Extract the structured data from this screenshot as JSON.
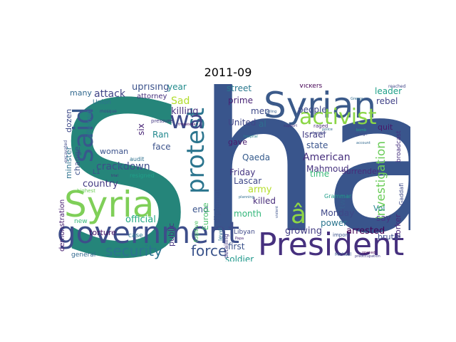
{
  "title": "2011-09",
  "words": [
    {
      "text": "S",
      "color": "#25857a"
    },
    {
      "text": "ha",
      "color": "#39558c"
    },
    {
      "text": "Syrian",
      "color": "#3b5a8a"
    },
    {
      "text": "government",
      "color": "#3d4e8a"
    },
    {
      "text": "President",
      "color": "#46307e"
    },
    {
      "text": "Syria",
      "color": "#7fcf58"
    },
    {
      "text": "activist",
      "color": "#8bd646"
    },
    {
      "text": "said",
      "color": "#38578c"
    },
    {
      "text": "protest",
      "color": "#2b758e"
    },
    {
      "text": "wa",
      "color": "#3e4a89"
    },
    {
      "text": "security",
      "color": "#2c738e"
    },
    {
      "text": "force",
      "color": "#3a538b"
    },
    {
      "text": "â",
      "color": "#8ed645"
    },
    {
      "text": "investigation",
      "color": "#6ccd5a"
    },
    {
      "text": "American",
      "color": "#472f7d"
    },
    {
      "text": "crackdown",
      "color": "#3e4c8a"
    },
    {
      "text": "country",
      "color": "#443a83"
    },
    {
      "text": "attack",
      "color": "#414487"
    },
    {
      "text": "Sad",
      "color": "#b2dd2c"
    },
    {
      "text": "killing",
      "color": "#46327e"
    },
    {
      "text": "uprising",
      "color": "#3b528b"
    },
    {
      "text": "official",
      "color": "#24aa83"
    },
    {
      "text": "army",
      "color": "#b5de2b"
    },
    {
      "text": "month",
      "color": "#32b67a"
    },
    {
      "text": "killed",
      "color": "#472c7a"
    },
    {
      "text": "Lascar",
      "color": "#3f4889"
    },
    {
      "text": "Qaeda",
      "color": "#365c8d"
    },
    {
      "text": "Mahmoud",
      "color": "#46337f"
    },
    {
      "text": "Friday",
      "color": "#453581"
    },
    {
      "text": "United",
      "color": "#404588"
    },
    {
      "text": "al",
      "color": "#2e6e8e"
    },
    {
      "text": "men",
      "color": "#3e4989"
    },
    {
      "text": "street",
      "color": "#2a788e"
    },
    {
      "text": "prime",
      "color": "#482374"
    },
    {
      "text": "state",
      "color": "#3a548c"
    },
    {
      "text": "Israel",
      "color": "#433e85"
    },
    {
      "text": "people",
      "color": "#3e4989"
    },
    {
      "text": "growing",
      "color": "#433d84"
    },
    {
      "text": "arrested",
      "color": "#440154"
    },
    {
      "text": "first",
      "color": "#3b528b"
    },
    {
      "text": "soldier",
      "color": "#1f988b"
    },
    {
      "text": "gave",
      "color": "#481a6c"
    },
    {
      "text": "Monday",
      "color": "#3f4788"
    },
    {
      "text": "power",
      "color": "#2b758e"
    },
    {
      "text": "time",
      "color": "#37b878"
    },
    {
      "text": "say",
      "color": "#443983"
    },
    {
      "text": "leader",
      "color": "#1fa088"
    },
    {
      "text": "rebel",
      "color": "#414287"
    },
    {
      "text": "Vol",
      "color": "#25848e"
    },
    {
      "text": "worker",
      "color": "#482878"
    },
    {
      "text": "brutal",
      "color": "#3d4d8a"
    },
    {
      "text": "quit",
      "color": "#48186a"
    },
    {
      "text": "six",
      "color": "#482576"
    },
    {
      "text": "Ran",
      "color": "#23888e"
    },
    {
      "text": "face",
      "color": "#3b528b"
    },
    {
      "text": "year",
      "color": "#228c8d"
    },
    {
      "text": "public",
      "color": "#46337f"
    },
    {
      "text": "end",
      "color": "#3a548c"
    },
    {
      "text": "Europe",
      "color": "#4ac16d"
    },
    {
      "text": "diplomat",
      "color": "#3c508b"
    },
    {
      "text": "minister",
      "color": "#2c718e"
    },
    {
      "text": "change",
      "color": "#3c4f8a"
    },
    {
      "text": "dozen",
      "color": "#3e4a89"
    },
    {
      "text": "demonstration",
      "color": "#482071"
    },
    {
      "text": "woman",
      "color": "#3b528b"
    },
    {
      "text": "torture",
      "color": "#471365"
    },
    {
      "text": "many",
      "color": "#31688e"
    },
    {
      "text": "attorney",
      "color": "#46307e"
    },
    {
      "text": "Union",
      "color": "#2c728e"
    },
    {
      "text": "aftermath",
      "color": "#2c738e"
    },
    {
      "text": "new",
      "color": "#35b779"
    },
    {
      "text": "case",
      "color": "#2a788e"
    },
    {
      "text": "general",
      "color": "#31688e"
    },
    {
      "text": "two",
      "color": "#365d8d"
    },
    {
      "text": "L1",
      "color": "#3d4e8a"
    },
    {
      "text": "audit",
      "color": "#2d708e"
    },
    {
      "text": "resigned",
      "color": "#1fa088"
    },
    {
      "text": "surrender",
      "color": "#472d7b"
    },
    {
      "text": "Grammar",
      "color": "#1f9e89"
    },
    {
      "text": "broadcast",
      "color": "#46307e"
    },
    {
      "text": "Vickers",
      "color": "#440154"
    },
    {
      "text": "Gaddafi",
      "color": "#3e4a89"
    },
    {
      "text": "Libyan",
      "color": "#3f4889"
    },
    {
      "text": "detailing",
      "color": "#443a83"
    },
    {
      "text": "level",
      "color": "#2e6f8e"
    },
    {
      "text": "fugitive",
      "color": "#54c568"
    },
    {
      "text": "reached",
      "color": "#404588"
    },
    {
      "text": "import",
      "color": "#3b528b"
    },
    {
      "text": "raged",
      "color": "#482979"
    },
    {
      "text": "Michael",
      "color": "#39568c"
    },
    {
      "text": "pressure",
      "color": "#443983"
    },
    {
      "text": "excavated",
      "color": "#3e4a89"
    },
    {
      "text": "highest",
      "color": "#6ece58"
    },
    {
      "text": "mosque",
      "color": "#3f4788"
    },
    {
      "text": "Lebanon",
      "color": "#2a768e"
    },
    {
      "text": "trial",
      "color": "#46327e"
    },
    {
      "text": "police",
      "color": "#31688e"
    },
    {
      "text": "bomb",
      "color": "#20a486"
    },
    {
      "text": "Papa",
      "color": "#482878"
    },
    {
      "text": "planning",
      "color": "#2e6d8e"
    },
    {
      "text": "calling",
      "color": "#355f8d"
    },
    {
      "text": "support",
      "color": "#46327e"
    },
    {
      "text": "violent",
      "color": "#3b528b"
    },
    {
      "text": "opened",
      "color": "#440154"
    },
    {
      "text": "Greece",
      "color": "#2f6c8e"
    },
    {
      "text": "threatened",
      "color": "#471365"
    },
    {
      "text": "foreign",
      "color": "#3e4a89"
    },
    {
      "text": "account",
      "color": "#31688e"
    },
    {
      "text": "preoccupation",
      "color": "#433e85"
    },
    {
      "text": "hospital",
      "color": "#26828e"
    },
    {
      "text": "chamber",
      "color": "#3f4788"
    }
  ]
}
